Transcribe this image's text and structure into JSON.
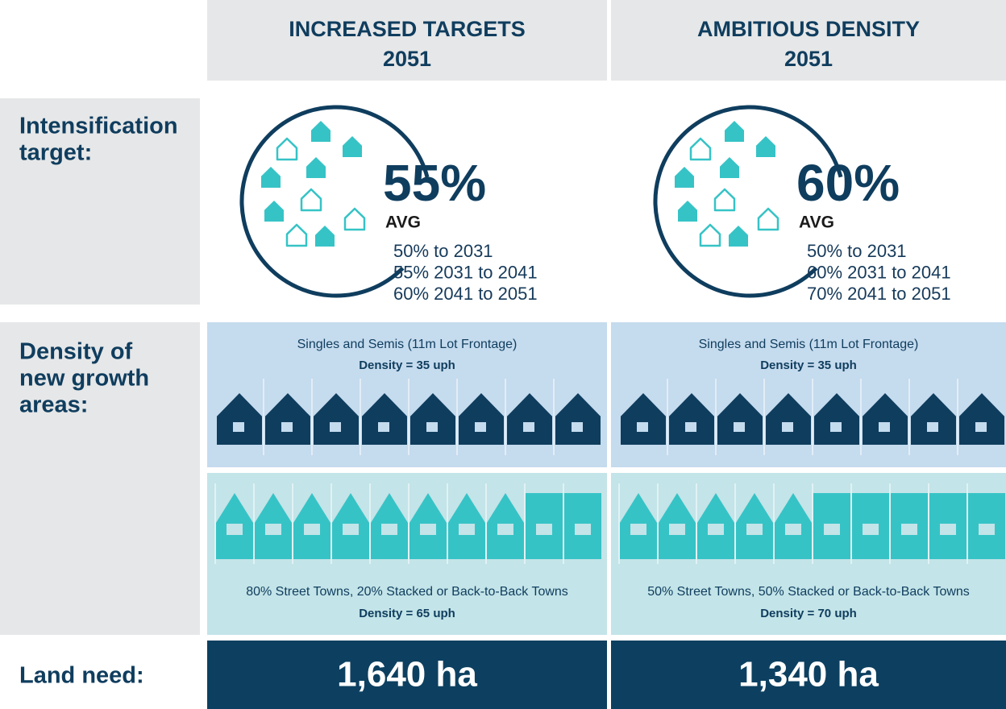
{
  "columns": [
    {
      "title": "INCREASED TARGETS",
      "year": "2051",
      "intensification": {
        "percent": "55%",
        "avg": "AVG",
        "phases": [
          "50% to 2031",
          "55% 2031 to 2041",
          "60% 2041 to 2051"
        ]
      },
      "density": {
        "singles_label": "Singles and Semis (11m Lot Frontage)",
        "singles_density": "Density = 35 uph",
        "towns_label": "80% Street Towns, 20% Stacked or Back-to-Back Towns",
        "towns_density": "Density = 65 uph"
      },
      "land_need": "1,640 ha"
    },
    {
      "title": "AMBITIOUS DENSITY",
      "year": "2051",
      "intensification": {
        "percent": "60%",
        "avg": "AVG",
        "phases": [
          "50% to 2031",
          "60% 2031 to 2041",
          "70% 2041 to 2051"
        ]
      },
      "density": {
        "singles_label": "Singles and Semis (11m Lot Frontage)",
        "singles_density": "Density = 35 uph",
        "towns_label": "50% Street Towns, 50% Stacked or Back-to-Back Towns",
        "towns_density": "Density = 70 uph"
      },
      "land_need": "1,340 ha"
    }
  ],
  "rows": [
    {
      "label_lines": [
        "Intensification",
        "target:"
      ]
    },
    {
      "label_lines": [
        "Density of",
        "new growth",
        "areas:"
      ]
    },
    {
      "label_lines": [
        "Land need:"
      ]
    }
  ]
}
